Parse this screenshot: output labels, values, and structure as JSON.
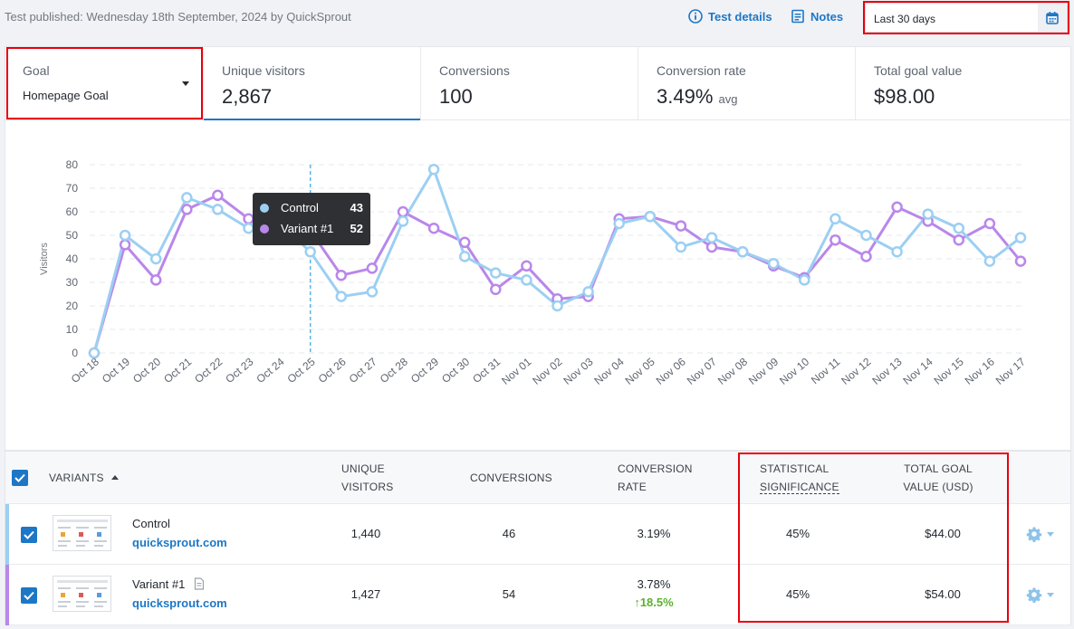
{
  "header": {
    "published": "Test published: Wednesday 18th September, 2024 by QuickSprout",
    "test_details": "Test details",
    "notes": "Notes",
    "date_range": "Last 30 days"
  },
  "stats": {
    "goal_label": "Goal",
    "goal_value": "Homepage Goal",
    "visitors_label": "Unique visitors",
    "visitors_value": "2,867",
    "conversions_label": "Conversions",
    "conversions_value": "100",
    "rate_label": "Conversion rate",
    "rate_value": "3.49%",
    "rate_suffix": "avg",
    "goal_value_label": "Total goal value",
    "goal_value_value": "$98.00"
  },
  "chart_data": {
    "type": "line",
    "ylabel": "Visitors",
    "ylim": [
      0,
      80
    ],
    "yticks": [
      0,
      10,
      20,
      30,
      40,
      50,
      60,
      70,
      80
    ],
    "grid": true,
    "categories": [
      "Oct 18",
      "Oct 19",
      "Oct 20",
      "Oct 21",
      "Oct 22",
      "Oct 23",
      "Oct 24",
      "Oct 25",
      "Oct 26",
      "Oct 27",
      "Oct 28",
      "Oct 29",
      "Oct 30",
      "Oct 31",
      "Nov 01",
      "Nov 02",
      "Nov 03",
      "Nov 04",
      "Nov 05",
      "Nov 06",
      "Nov 07",
      "Nov 08",
      "Nov 09",
      "Nov 10",
      "Nov 11",
      "Nov 12",
      "Nov 13",
      "Nov 14",
      "Nov 15",
      "Nov 16",
      "Nov 17"
    ],
    "series": [
      {
        "name": "Control",
        "color": "#9ccff2",
        "values": [
          0,
          50,
          40,
          66,
          61,
          53,
          55,
          43,
          24,
          26,
          56,
          78,
          41,
          34,
          31,
          20,
          26,
          55,
          58,
          45,
          49,
          43,
          38,
          31,
          57,
          50,
          43,
          59,
          53,
          39,
          49
        ]
      },
      {
        "name": "Variant #1",
        "color": "#b987ea",
        "values": [
          0,
          46,
          31,
          61,
          67,
          57,
          54,
          52,
          33,
          36,
          60,
          53,
          47,
          27,
          37,
          23,
          24,
          57,
          58,
          54,
          45,
          43,
          37,
          32,
          48,
          41,
          62,
          56,
          48,
          55,
          39
        ]
      }
    ],
    "highlight_category": "Oct 25"
  },
  "tooltip": {
    "rows": [
      {
        "name": "Control",
        "value": "43"
      },
      {
        "name": "Variant #1",
        "value": "52"
      }
    ]
  },
  "table": {
    "headers": {
      "variants": "VARIANTS",
      "visitors_1": "UNIQUE",
      "visitors_2": "VISITORS",
      "conversions": "CONVERSIONS",
      "rate_1": "CONVERSION",
      "rate_2": "RATE",
      "stat_1": "STATISTICAL",
      "stat_2": "SIGNIFICANCE",
      "value_1": "TOTAL GOAL",
      "value_2": "VALUE (USD)"
    },
    "rows": [
      {
        "name": "Control",
        "url": "quicksprout.com",
        "visitors": "1,440",
        "conversions": "46",
        "rate": "3.19%",
        "uplift": "",
        "significance": "45%",
        "value": "$44.00",
        "color": "#9ccff2"
      },
      {
        "name": "Variant #1",
        "url": "quicksprout.com",
        "visitors": "1,427",
        "conversions": "54",
        "rate": "3.78%",
        "uplift": "18.5%",
        "significance": "45%",
        "value": "$54.00",
        "color": "#b987ea"
      }
    ]
  }
}
